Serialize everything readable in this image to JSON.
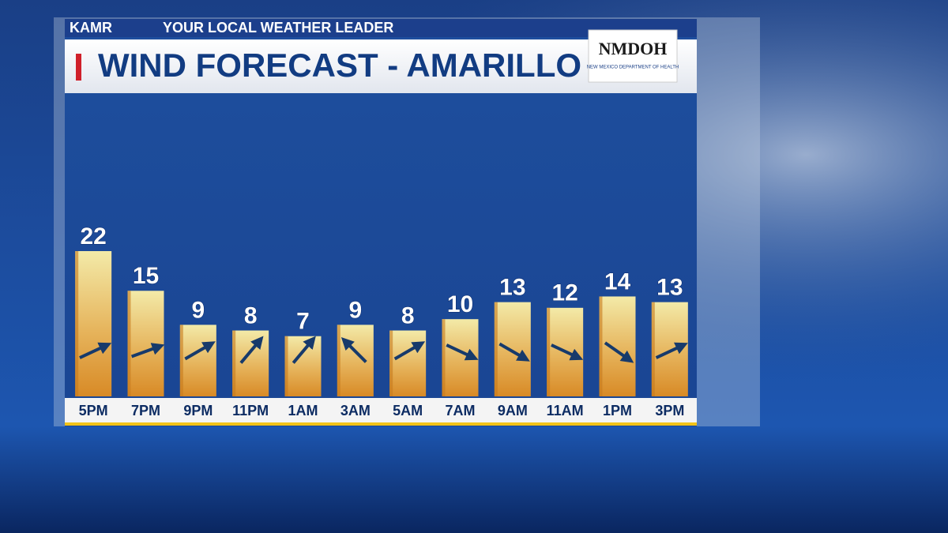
{
  "header": {
    "station": "KAMR",
    "tagline": "YOUR LOCAL WEATHER LEADER"
  },
  "sponsor": {
    "name": "NMDOH",
    "full_name": "NEW MEXICO DEPARTMENT OF HEALTH"
  },
  "chart_data": {
    "type": "bar",
    "title": "WIND FORECAST - AMARILLO",
    "categories": [
      "5PM",
      "7PM",
      "9PM",
      "11PM",
      "1AM",
      "3AM",
      "5AM",
      "7AM",
      "9AM",
      "11AM",
      "1PM",
      "3PM"
    ],
    "values": [
      22,
      15,
      9,
      8,
      7,
      9,
      8,
      10,
      13,
      12,
      14,
      13
    ],
    "arrow_angles": [
      25,
      20,
      30,
      50,
      50,
      135,
      30,
      -25,
      -30,
      -25,
      -35,
      25
    ],
    "color": "#e6b45c"
  }
}
